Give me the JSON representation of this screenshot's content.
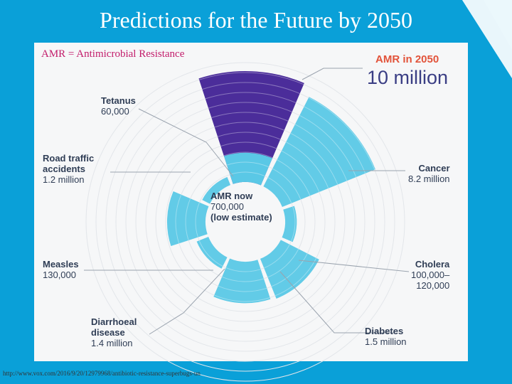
{
  "slide": {
    "title": "Predictions for the Future by 2050",
    "subtitle": "AMR = Antimicrobial Resistance",
    "source": "http://www.vox.com/2016/9/20/12979968/antibiotic-resistance-superbugs-un"
  },
  "colors": {
    "amr": "#4b2d9a",
    "other": "#5ac8e6",
    "ring": "#ffffff",
    "label": "#2f3d55",
    "accent": "#e2533a"
  },
  "chart_data": {
    "type": "polar-area",
    "title": "AMR in 2050",
    "highlight": {
      "label": "AMR in 2050",
      "value_text": "10 million",
      "value": 10000000
    },
    "center": {
      "title": "AMR now",
      "value_text": "700,000",
      "note": "(low estimate)",
      "value": 700000
    },
    "segments": [
      {
        "name": "AMR in 2050",
        "value_text": "10 million",
        "value": 10000000,
        "kind": "amr"
      },
      {
        "name": "Cancer",
        "value_text": "8.2 million",
        "value": 8200000,
        "kind": "other"
      },
      {
        "name": "Cholera",
        "value_text": "100,000–\n120,000",
        "value": 110000,
        "kind": "other"
      },
      {
        "name": "Diabetes",
        "value_text": "1.5 million",
        "value": 1500000,
        "kind": "other"
      },
      {
        "name": "Diarrhoeal disease",
        "value_text": "1.4 million",
        "value": 1400000,
        "kind": "other"
      },
      {
        "name": "Measles",
        "value_text": "130,000",
        "value": 130000,
        "kind": "other"
      },
      {
        "name": "Road traffic accidents",
        "value_text": "1.2 million",
        "value": 1200000,
        "kind": "other"
      },
      {
        "name": "Tetanus",
        "value_text": "60,000",
        "value": 60000,
        "kind": "other"
      }
    ],
    "labels": {
      "tetanus": {
        "name": "Tetanus",
        "value": "60,000"
      },
      "road": {
        "name": "Road traffic\naccidents",
        "value": "1.2 million"
      },
      "measles": {
        "name": "Measles",
        "value": "130,000"
      },
      "diarrhoeal": {
        "name": "Diarrhoeal\ndisease",
        "value": "1.4 million"
      },
      "diabetes": {
        "name": "Diabetes",
        "value": "1.5 million"
      },
      "cholera": {
        "name": "Cholera",
        "value": "100,000–\n120,000"
      },
      "cancer": {
        "name": "Cancer",
        "value": "8.2 million"
      }
    }
  }
}
